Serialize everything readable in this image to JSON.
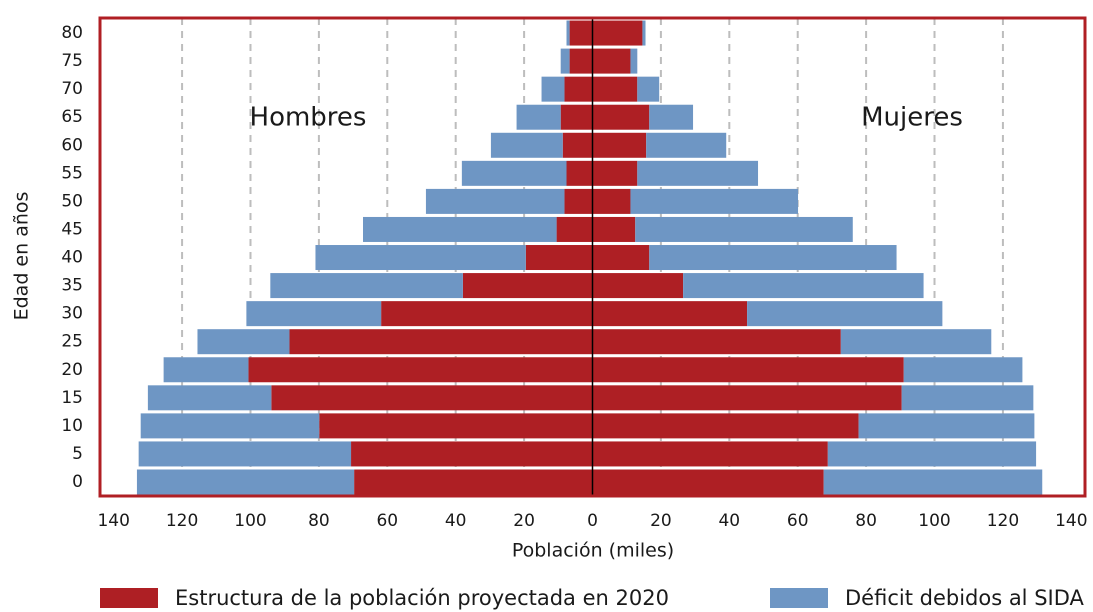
{
  "chart_data": {
    "type": "pyramid",
    "y_label": "Edad en años",
    "x_label": "Población (miles)",
    "left_label": "Hombres",
    "right_label": "Mujeres",
    "categories": [
      "0",
      "5",
      "10",
      "15",
      "20",
      "25",
      "30",
      "35",
      "40",
      "45",
      "50",
      "55",
      "60",
      "65",
      "70",
      "75",
      "80"
    ],
    "series": [
      {
        "name": "Estructura de la población proyectada en 2020",
        "color": "#ae1f24",
        "men": [
          69.7,
          70.6,
          79.9,
          93.9,
          100.6,
          88.6,
          61.8,
          37.9,
          19.5,
          10.5,
          8.2,
          7.6,
          8.7,
          9.3,
          8.2,
          6.7,
          6.7
        ],
        "women": [
          67.6,
          68.8,
          77.8,
          90.4,
          91.0,
          72.6,
          45.2,
          26.5,
          16.6,
          12.5,
          11.1,
          13.1,
          15.7,
          16.6,
          13.1,
          11.1,
          14.6
        ]
      },
      {
        "name": "Déficit debidos al SIDA",
        "color": "#6e96c4",
        "men": [
          63.5,
          62.1,
          52.2,
          36.1,
          24.8,
          26.9,
          39.4,
          56.3,
          61.5,
          56.6,
          40.5,
          30.6,
          21.0,
          12.9,
          6.7,
          2.6,
          0.9
        ],
        "women": [
          63.9,
          60.9,
          51.4,
          38.5,
          34.7,
          44.0,
          57.1,
          70.3,
          72.3,
          63.6,
          49.0,
          35.3,
          23.4,
          12.8,
          6.4,
          2.0,
          0.9
        ]
      }
    ],
    "xlim": [
      -144,
      144
    ],
    "xticks": [
      {
        "value": -140,
        "label": "140"
      },
      {
        "value": -120,
        "label": "120"
      },
      {
        "value": -100,
        "label": "100"
      },
      {
        "value": -80,
        "label": "80"
      },
      {
        "value": -60,
        "label": "60"
      },
      {
        "value": -40,
        "label": "40"
      },
      {
        "value": -20,
        "label": "20"
      },
      0,
      20,
      40,
      60,
      80,
      100,
      120,
      140
    ],
    "grid": true,
    "frame_color": "#b01f24"
  }
}
